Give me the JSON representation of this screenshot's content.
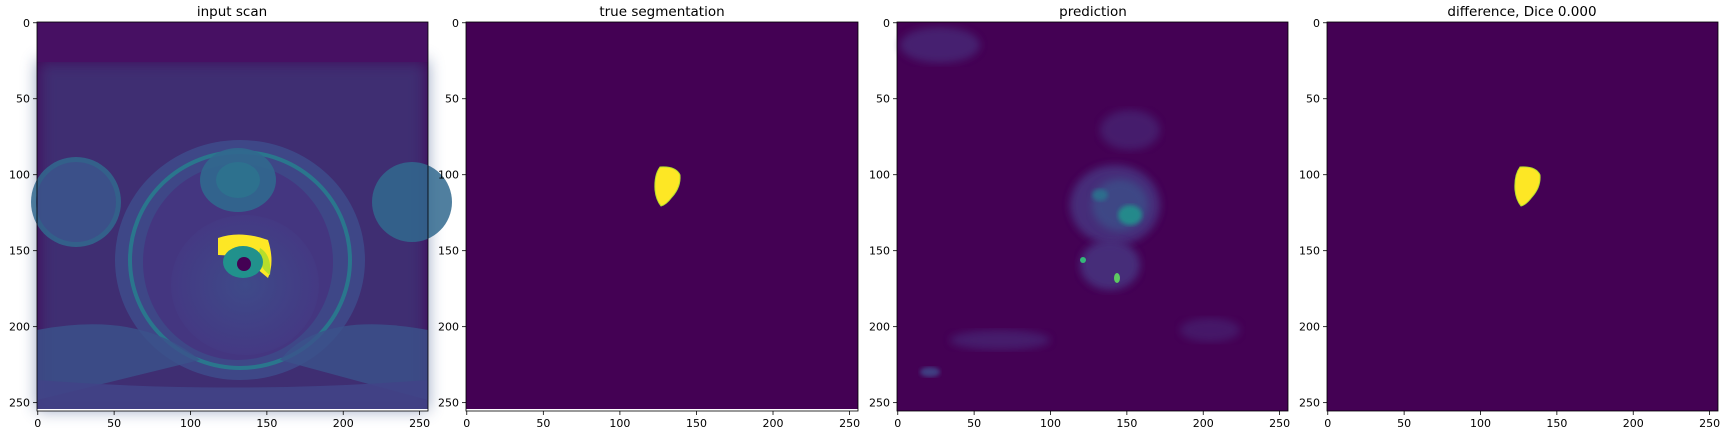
{
  "panels": [
    {
      "id": "input",
      "title": "input scan",
      "xticks": [
        "0",
        "50",
        "100",
        "150",
        "200",
        "250"
      ],
      "yticks": [
        "0",
        "50",
        "100",
        "150",
        "200",
        "250"
      ]
    },
    {
      "id": "truth",
      "title": "true segmentation",
      "xticks": [
        "0",
        "50",
        "100",
        "150",
        "200",
        "250"
      ],
      "yticks": [
        "0",
        "50",
        "100",
        "150",
        "200",
        "250"
      ]
    },
    {
      "id": "pred",
      "title": "prediction",
      "xticks": [
        "0",
        "50",
        "100",
        "150",
        "200",
        "250"
      ],
      "yticks": [
        "0",
        "50",
        "100",
        "150",
        "200",
        "250"
      ]
    },
    {
      "id": "diff",
      "title": "difference, Dice 0.000",
      "xticks": [
        "0",
        "50",
        "100",
        "150",
        "200",
        "250"
      ],
      "yticks": [
        "0",
        "50",
        "100",
        "150",
        "200",
        "250"
      ]
    }
  ],
  "colors": {
    "background": "#440154",
    "dark_teal": "#31688e",
    "teal": "#26828e",
    "green": "#35b779",
    "yellow": "#fde725",
    "pale_yellow": "#b5de2b"
  }
}
